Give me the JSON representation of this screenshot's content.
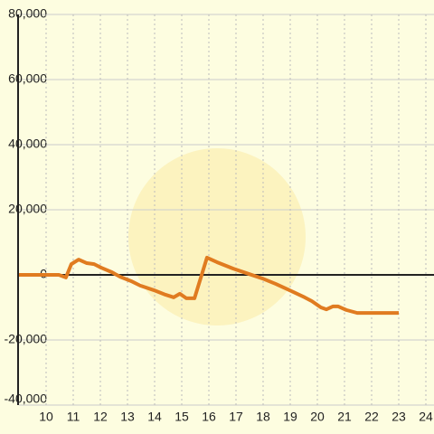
{
  "chart_data": {
    "type": "line",
    "x": [
      9,
      10.47,
      10.73,
      10.93,
      11.2,
      11.5,
      11.77,
      12.03,
      12.43,
      12.73,
      13.13,
      13.47,
      13.97,
      14.4,
      14.7,
      14.93,
      15.17,
      15.47,
      15.93,
      16.3,
      16.9,
      17.47,
      17.97,
      18.47,
      18.97,
      19.53,
      19.8,
      20.13,
      20.33,
      20.57,
      20.77,
      21.07,
      21.47,
      23.0
    ],
    "series": [
      {
        "color": "#e07b20",
        "values": [
          0,
          0,
          -800,
          3300,
          4700,
          3600,
          3300,
          2200,
          800,
          -600,
          -1900,
          -3300,
          -4700,
          -6100,
          -6900,
          -5800,
          -7200,
          -7200,
          5300,
          3900,
          1900,
          300,
          -1100,
          -2800,
          -4700,
          -6900,
          -8100,
          -10000,
          -10600,
          -9700,
          -9700,
          -10800,
          -11700,
          -11700
        ]
      }
    ],
    "xlim": [
      9,
      24.3
    ],
    "xticks": [
      10,
      11,
      12,
      13,
      14,
      15,
      16,
      17,
      18,
      19,
      20,
      21,
      22,
      23,
      24
    ],
    "ylim": [
      -40000,
      80000
    ],
    "yticks": [
      {
        "value": -40000,
        "label": "-40,000"
      },
      {
        "value": -20000,
        "label": "-20,000"
      },
      0,
      {
        "value": 20000,
        "label": "20,000"
      },
      {
        "value": 40000,
        "label": "40,000"
      },
      {
        "value": 60000,
        "label": "60,000"
      },
      {
        "value": 80000,
        "label": "80,000"
      }
    ],
    "grid": true
  }
}
